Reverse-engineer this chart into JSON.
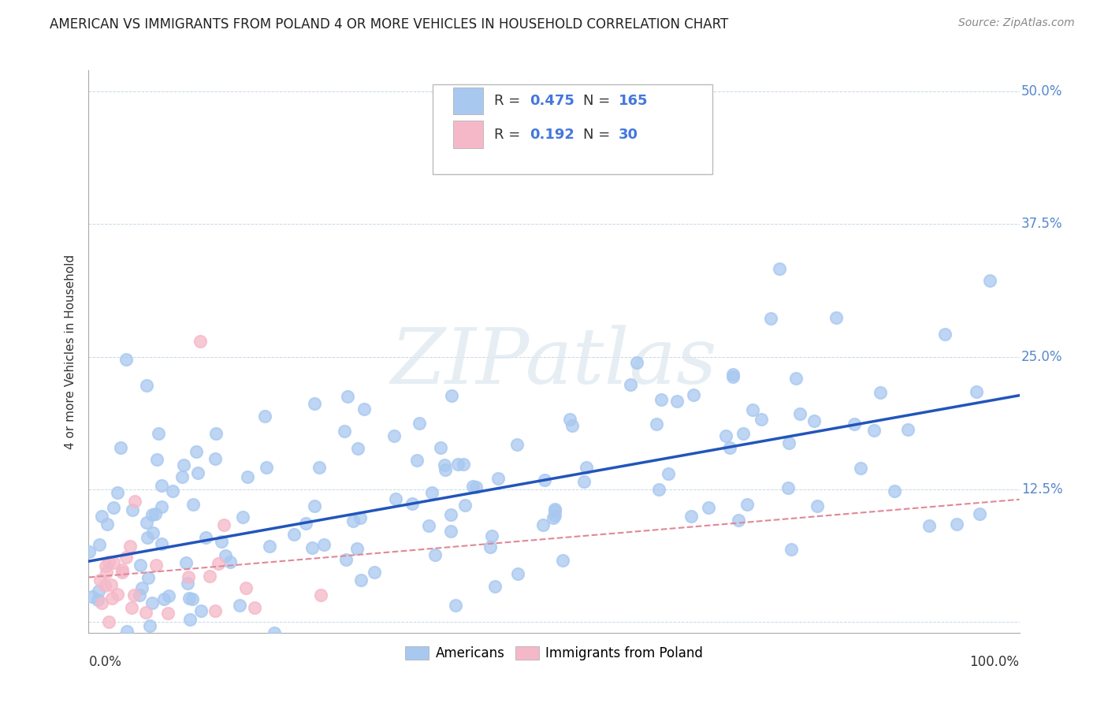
{
  "title": "AMERICAN VS IMMIGRANTS FROM POLAND 4 OR MORE VEHICLES IN HOUSEHOLD CORRELATION CHART",
  "source": "Source: ZipAtlas.com",
  "ylabel": "4 or more Vehicles in Household",
  "r_american": 0.475,
  "n_american": 165,
  "r_poland": 0.192,
  "n_poland": 30,
  "color_american": "#a8c8f0",
  "color_poland": "#f5b8c8",
  "line_color_american": "#2255bb",
  "line_color_poland": "#e08898",
  "xlim": [
    0,
    1.0
  ],
  "ylim": [
    -0.01,
    0.52
  ],
  "yticks": [
    0.0,
    0.125,
    0.25,
    0.375,
    0.5
  ],
  "ytick_labels": [
    "",
    "12.5%",
    "25.0%",
    "37.5%",
    "50.0%"
  ],
  "background_color": "#ffffff",
  "title_fontsize": 12,
  "axis_label_fontsize": 11,
  "tick_fontsize": 12,
  "source_fontsize": 10,
  "watermark_color": "#dce8f0",
  "watermark_alpha": 0.7
}
